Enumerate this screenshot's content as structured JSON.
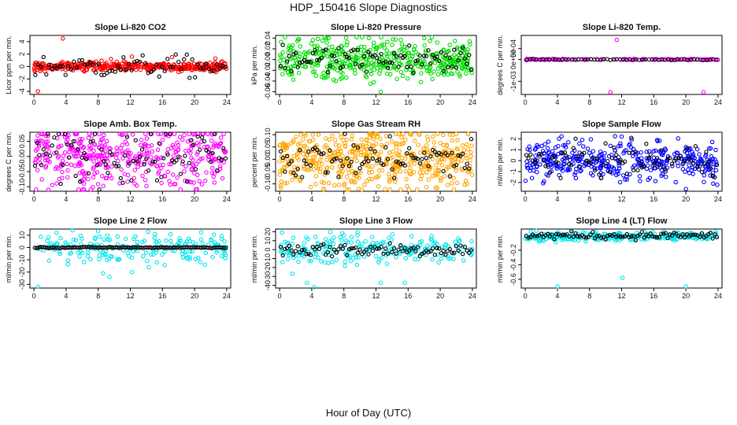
{
  "page": {
    "title": "HDP_150416  Slope Diagnostics",
    "xlabel": "Hour of Day (UTC)"
  },
  "chart_data": [
    {
      "type": "scatter",
      "title": "Slope Li-820 CO2",
      "ylabel": "Licor ppm per min.",
      "color": "#ff0000",
      "xlim": [
        -0.5,
        24.5
      ],
      "ylim": [
        -4.5,
        5
      ],
      "xticks": [
        0,
        4,
        8,
        12,
        16,
        20,
        24
      ],
      "yticks": [
        -4,
        -2,
        0,
        2,
        4
      ],
      "yticklabels": [
        "-4",
        "-2",
        "0",
        "2",
        "4"
      ],
      "base": 0,
      "spread": 0.35,
      "n": 380,
      "outliers": [
        [
          0.5,
          -4
        ],
        [
          3.6,
          4.5
        ],
        [
          0.2,
          0.6
        ],
        [
          9.6,
          1.2
        ],
        [
          12.2,
          1.6
        ],
        [
          17.2,
          1.5
        ],
        [
          22.6,
          1.3
        ]
      ],
      "black": {
        "base": 0,
        "spread": 0.9,
        "n": 70
      }
    },
    {
      "type": "scatter",
      "title": "Slope Li-820 Pressure",
      "ylabel": "kPa per min.",
      "color": "#00dd00",
      "xlim": [
        -0.5,
        24.5
      ],
      "ylim": [
        -0.065,
        0.045
      ],
      "xticks": [
        0,
        4,
        8,
        12,
        16,
        20,
        24
      ],
      "yticks": [
        -0.06,
        -0.04,
        -0.02,
        0,
        0.02,
        0.04
      ],
      "yticklabels": [
        "-0.06",
        "-0.04",
        "-0.02",
        "0.00",
        "0.02",
        "0.04"
      ],
      "base": 0,
      "spread": 0.018,
      "n": 450,
      "outliers": [
        [
          12.6,
          -0.06
        ],
        [
          18.0,
          0.04
        ],
        [
          7.0,
          -0.04
        ],
        [
          11.3,
          -0.045
        ]
      ],
      "black": {
        "base": 0,
        "spread": 0.012,
        "n": 90
      }
    },
    {
      "type": "scatter",
      "title": "Slope Li-820 Temp.",
      "ylabel": "degrees C per min.",
      "color": "#ff00ff",
      "xlim": [
        -0.5,
        24.5
      ],
      "ylim": [
        -0.0016,
        0.0011
      ],
      "xticks": [
        0,
        4,
        8,
        12,
        16,
        20,
        24
      ],
      "yticks": [
        -0.001,
        0,
        0.0005
      ],
      "yticklabels": [
        "-1e-03",
        "0e+00",
        "5e-04"
      ],
      "base": 0,
      "spread": 1.5e-05,
      "n": 110,
      "outliers": [
        [
          11.4,
          0.0009
        ],
        [
          10.6,
          -0.0015
        ],
        [
          22.2,
          -0.0015
        ]
      ],
      "black": {
        "base": 0,
        "spread": 1.5e-05,
        "n": 60
      }
    },
    {
      "type": "scatter",
      "title": "Slope Amb. Box Temp.",
      "ylabel": "degrees C per min.",
      "color": "#ff00ff",
      "xlim": [
        -0.5,
        24.5
      ],
      "ylim": [
        -0.115,
        0.08
      ],
      "xticks": [
        0,
        4,
        8,
        12,
        16,
        20,
        24
      ],
      "yticks": [
        -0.1,
        -0.05,
        0,
        0.05
      ],
      "yticklabels": [
        "-0.10",
        "-0.05",
        "0.00",
        "0.05"
      ],
      "base": 0,
      "spread": 0.05,
      "n": 420,
      "outliers": [
        [
          1.8,
          -0.11
        ],
        [
          16.4,
          0.07
        ]
      ],
      "black": {
        "base": 0,
        "spread": 0.05,
        "n": 90
      }
    },
    {
      "type": "scatter",
      "title": "Slope Gas Stream RH",
      "ylabel": "percent per min.",
      "color": "#ffa500",
      "xlim": [
        -0.5,
        24.5
      ],
      "ylim": [
        -0.13,
        0.11
      ],
      "xticks": [
        0,
        4,
        8,
        12,
        16,
        20,
        24
      ],
      "yticks": [
        -0.1,
        -0.05,
        0,
        0.05,
        0.1
      ],
      "yticklabels": [
        "-0.10",
        "-0.05",
        "0.00",
        "0.05",
        "0.10"
      ],
      "base": 0,
      "spread": 0.06,
      "n": 520,
      "outliers": [
        [
          12.3,
          -0.11
        ],
        [
          17.4,
          0.1
        ]
      ],
      "black": {
        "base": 0,
        "spread": 0.04,
        "n": 90
      }
    },
    {
      "type": "scatter",
      "title": "Slope Sample Flow",
      "ylabel": "ml/min per min.",
      "color": "#0000ff",
      "xlim": [
        -0.5,
        24.5
      ],
      "ylim": [
        -2.8,
        2.6
      ],
      "xticks": [
        0,
        4,
        8,
        12,
        16,
        20,
        24
      ],
      "yticks": [
        -2,
        -1,
        0,
        1,
        2
      ],
      "yticklabels": [
        "-2",
        "-1",
        "0",
        "1",
        "2"
      ],
      "base": 0,
      "spread": 0.9,
      "n": 380,
      "outliers": [
        [
          12.0,
          2.2
        ],
        [
          20.0,
          -2.6
        ],
        [
          23.4,
          -2.1
        ],
        [
          23.9,
          -2.2
        ],
        [
          6.3,
          -1.6
        ]
      ],
      "black": {
        "base": 0,
        "spread": 0.7,
        "n": 90
      }
    },
    {
      "type": "scatter",
      "title": "Slope Line 2 Flow",
      "ylabel": "ml/min per min.",
      "color": "#00e5ee",
      "xlim": [
        -0.5,
        24.5
      ],
      "ylim": [
        -33,
        15
      ],
      "xticks": [
        0,
        4,
        8,
        12,
        16,
        20,
        24
      ],
      "yticks": [
        -30,
        -20,
        -10,
        0,
        10
      ],
      "yticklabels": [
        "-30",
        "-20",
        "-10",
        "0",
        "10"
      ],
      "base": 0,
      "spread": 6,
      "n": 200,
      "outliers": [
        [
          0.5,
          -32
        ],
        [
          4.8,
          14
        ],
        [
          9.4,
          -24
        ],
        [
          12.2,
          -20
        ],
        [
          8.6,
          -21
        ]
      ],
      "black": {
        "base": 0,
        "spread": 0.3,
        "n": 110
      }
    },
    {
      "type": "scatter",
      "title": "Slope Line 3 Flow",
      "ylabel": "ml/min per min.",
      "color": "#00e5ee",
      "xlim": [
        -0.5,
        24.5
      ],
      "ylim": [
        -43,
        23
      ],
      "xticks": [
        0,
        4,
        8,
        12,
        16,
        20,
        24
      ],
      "yticks": [
        -40,
        -30,
        -20,
        -10,
        0,
        10,
        20
      ],
      "yticklabels": [
        "-40",
        "-30",
        "-20",
        "-10",
        "0",
        "10",
        "20"
      ],
      "base": 0,
      "spread": 8,
      "n": 220,
      "outliers": [
        [
          1.6,
          -27
        ],
        [
          3.4,
          -37
        ],
        [
          4.3,
          -42
        ],
        [
          12.6,
          -37
        ],
        [
          15.6,
          -37
        ],
        [
          0.3,
          19
        ]
      ],
      "black": {
        "base": 0,
        "spread": 4,
        "n": 90
      }
    },
    {
      "type": "scatter",
      "title": "Slope Line 4 (LT) Flow",
      "ylabel": "ml/min per min.",
      "color": "#00e5ee",
      "xlim": [
        -0.5,
        24.5
      ],
      "ylim": [
        -0.72,
        0.09
      ],
      "xticks": [
        0,
        4,
        8,
        12,
        16,
        20,
        24
      ],
      "yticks": [
        -0.6,
        -0.4,
        -0.2
      ],
      "yticklabels": [
        "-0.6",
        "-0.4",
        "-0.2"
      ],
      "base": -0.01,
      "spread": 0.03,
      "n": 260,
      "outliers": [
        [
          4.0,
          -0.7
        ],
        [
          12.1,
          -0.58
        ],
        [
          20.0,
          -0.7
        ]
      ],
      "black": {
        "base": 0,
        "spread": 0.025,
        "n": 90
      }
    }
  ]
}
